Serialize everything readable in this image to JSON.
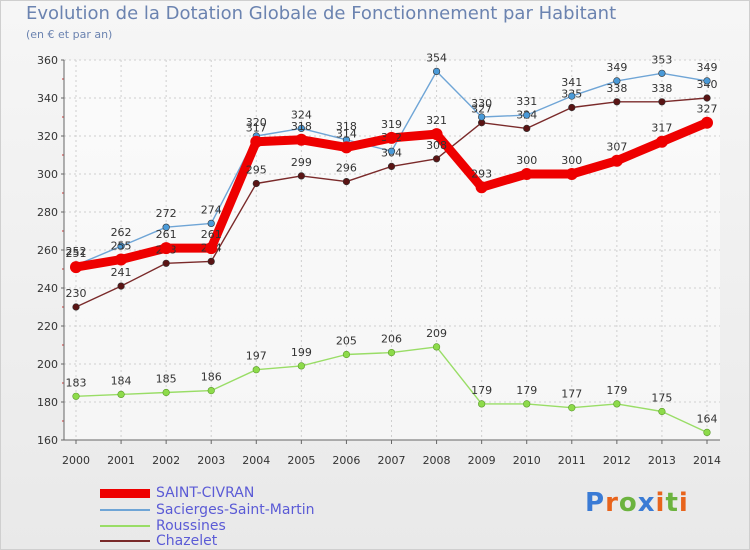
{
  "title": "Evolution de la Dotation Globale de Fonctionnement par Habitant",
  "subtitle": "(en € et par an)",
  "chart_data": {
    "type": "line",
    "title": "Evolution de la Dotation Globale de Fonctionnement par Habitant",
    "ylabel": "(en € et par an)",
    "xlabel": "",
    "x": [
      "2000",
      "2001",
      "2002",
      "2003",
      "2004",
      "2005",
      "2006",
      "2007",
      "2008",
      "2009",
      "2010",
      "2011",
      "2012",
      "2013",
      "2014"
    ],
    "ylim": [
      160,
      360
    ],
    "yticks": [
      160,
      180,
      200,
      220,
      240,
      260,
      280,
      300,
      320,
      340,
      360
    ],
    "grid": true,
    "series": [
      {
        "name": "SAINT-CIVRAN",
        "color": "#ee0000",
        "values": [
          251,
          255,
          261,
          261,
          317,
          318,
          314,
          319,
          321,
          293,
          300,
          300,
          307,
          317,
          327
        ]
      },
      {
        "name": "Sacierges-Saint-Martin",
        "color": "#6fa5d6",
        "values": [
          252,
          262,
          272,
          274,
          320,
          324,
          318,
          312,
          354,
          330,
          331,
          341,
          349,
          353,
          349
        ]
      },
      {
        "name": "Roussines",
        "color": "#99dd66",
        "values": [
          183,
          184,
          185,
          186,
          197,
          199,
          205,
          206,
          209,
          179,
          179,
          177,
          179,
          175,
          164
        ]
      },
      {
        "name": "Chazelet",
        "color": "#7a2a2a",
        "values": [
          230,
          241,
          253,
          254,
          295,
          299,
          296,
          304,
          308,
          327,
          324,
          335,
          338,
          338,
          340
        ]
      }
    ]
  },
  "logo": {
    "text": "Proxiti",
    "colors": [
      "#3a7bd5",
      "#e8641c",
      "#6cb33f",
      "#3a7bd5",
      "#e8641c",
      "#6cb33f",
      "#e8641c"
    ]
  }
}
